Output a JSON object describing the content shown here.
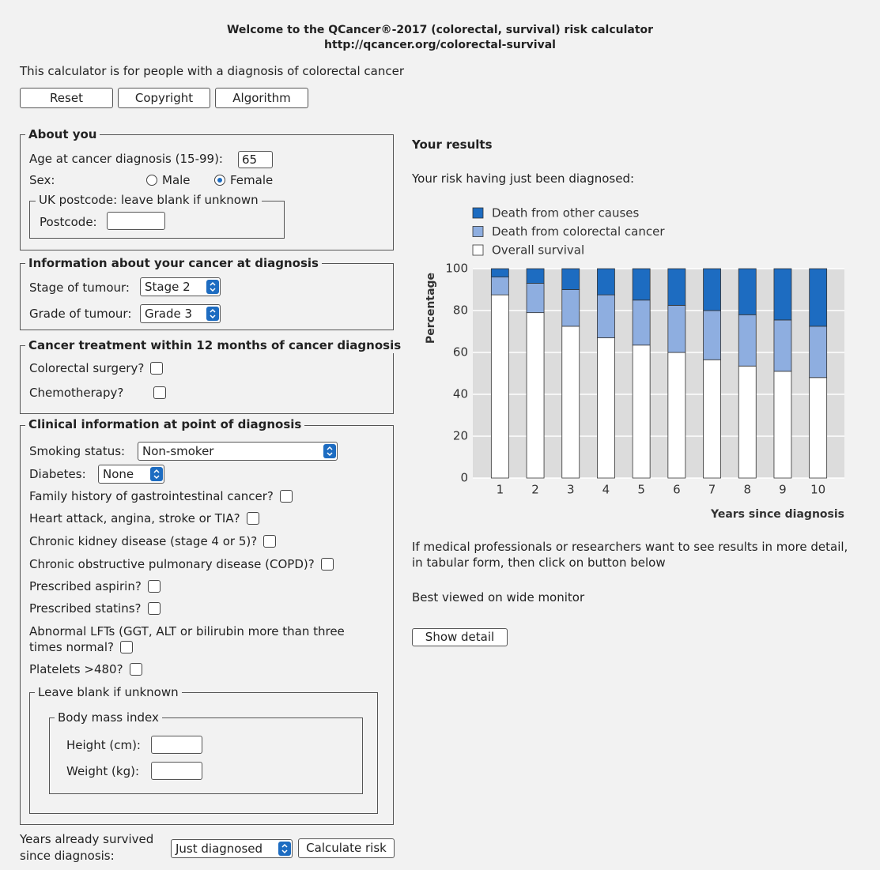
{
  "header": {
    "title": "Welcome to the QCancer®-2017 (colorectal, survival) risk calculator",
    "url": "http://qcancer.org/colorectal-survival"
  },
  "intro": "This calculator is for people with a diagnosis of colorectal cancer",
  "buttons": [
    "Reset",
    "Copyright",
    "Algorithm"
  ],
  "about": {
    "legend": "About you",
    "age_label": "Age at cancer diagnosis (15-99):",
    "age_value": "65",
    "sex_label": "Sex:",
    "male": "Male",
    "female": "Female",
    "postcode_legend": "UK postcode: leave blank if unknown",
    "postcode_label": "Postcode:"
  },
  "cancer_info": {
    "legend": "Information about your cancer at diagnosis",
    "stage_label": "Stage of tumour:",
    "stage_value": "Stage 2",
    "grade_label": "Grade of tumour:",
    "grade_value": "Grade 3"
  },
  "treatment": {
    "legend": "Cancer treatment within 12 months of cancer diagnosis",
    "items": [
      "Colorectal surgery?",
      "Chemotherapy?"
    ]
  },
  "clinical": {
    "legend": "Clinical information at point of diagnosis",
    "smoking_label": "Smoking status:",
    "smoking_value": "Non-smoker",
    "diabetes_label": "Diabetes:",
    "diabetes_value": "None",
    "items": [
      "Family history of gastrointestinal cancer?",
      "Heart attack, angina, stroke or TIA?",
      "Chronic kidney disease (stage 4 or 5)?",
      "Chronic obstructive pulmonary disease (COPD)?",
      "Prescribed aspirin?",
      "Prescribed statins?"
    ],
    "lft": [
      "Abnormal LFTs (GGT, ALT or bilirubin more than three",
      "times normal?"
    ],
    "platelets": "Platelets >480?",
    "unknown_legend": "Leave blank if unknown",
    "bmi_legend": "Body mass index",
    "height_label": "Height (cm):",
    "weight_label": "Weight (kg):"
  },
  "years": {
    "label": [
      "Years already survived",
      "since diagnosis:"
    ],
    "value": "Just diagnosed",
    "button": "Calculate risk"
  },
  "results": {
    "title": "Your results",
    "subtitle": "Your risk having just been diagnosed:",
    "detail": [
      "If medical professionals or researchers want to see results in more detail,",
      "in tabular form, then click on button below"
    ],
    "wide": "Best viewed on wide monitor",
    "button": "Show detail"
  },
  "chart_data": {
    "type": "stacked_bar",
    "ylabel": "Percentage",
    "xlabel": "Years since diagnosis",
    "categories": [
      1,
      2,
      3,
      4,
      5,
      6,
      7,
      8,
      9,
      10
    ],
    "series": [
      {
        "name": "Overall survival",
        "color": "#ffffff",
        "values": [
          87.5,
          79,
          72.5,
          67,
          63.5,
          60,
          56.5,
          53.5,
          51,
          48
        ]
      },
      {
        "name": "Death from colorectal cancer",
        "color": "#8eaee0",
        "values": [
          8.5,
          14,
          17.5,
          20.5,
          21.5,
          22.5,
          23.5,
          24.5,
          24.5,
          24.5
        ]
      },
      {
        "name": "Death from other causes",
        "color": "#1d6cc1",
        "values": [
          4,
          7,
          10,
          12.5,
          15,
          17.5,
          20,
          22,
          24.5,
          27.5
        ]
      }
    ],
    "ylim": [
      0,
      100
    ],
    "yticks": [
      0,
      20,
      40,
      60,
      80,
      100
    ],
    "grid": true
  }
}
